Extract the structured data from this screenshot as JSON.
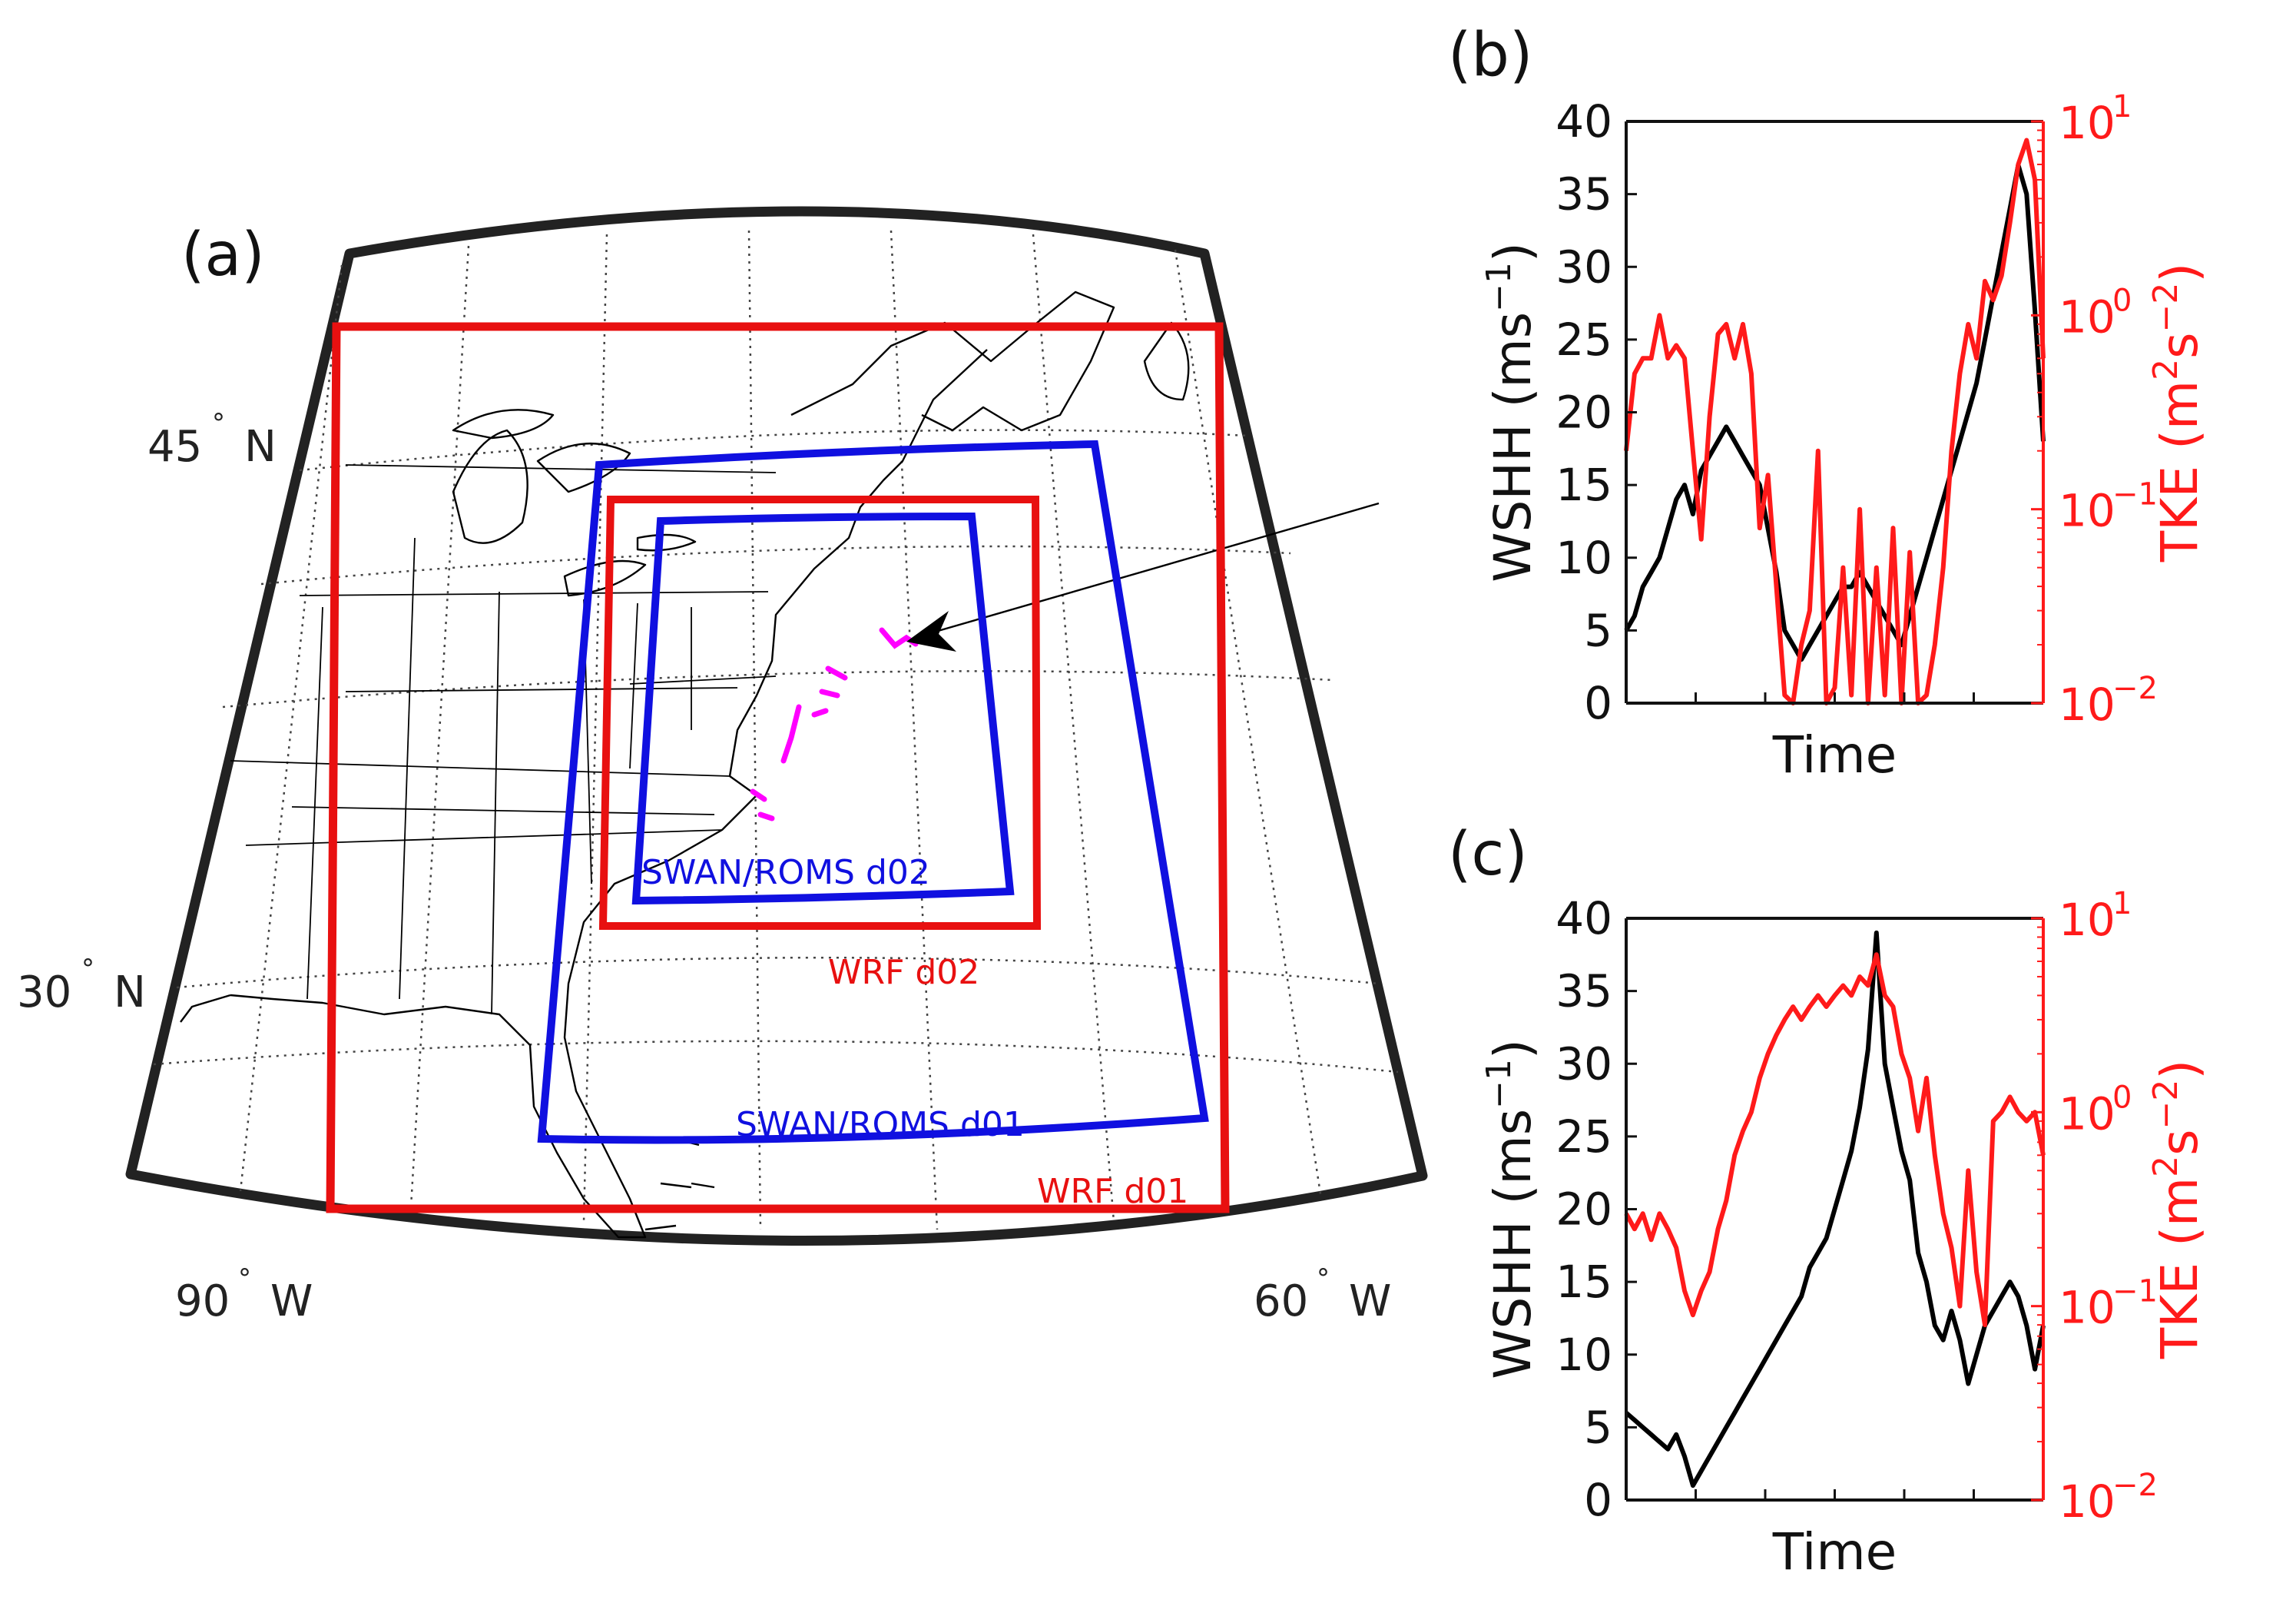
{
  "figure": {
    "panel_a": {
      "label": "(a)",
      "lat_labels": [
        {
          "text": "45",
          "suffix": "N"
        },
        {
          "text": "30",
          "suffix": "N"
        }
      ],
      "lon_labels": [
        {
          "text": "90",
          "suffix": "W"
        },
        {
          "text": "60",
          "suffix": "W"
        }
      ],
      "degree_symbol": "°",
      "domains": [
        {
          "name": "SWAN/ROMS d02",
          "color": "#1010e0"
        },
        {
          "name": "WRF d02",
          "color": "#e81010"
        },
        {
          "name": "SWAN/ROMS d01",
          "color": "#1010e0"
        },
        {
          "name": "WRF d01",
          "color": "#e81010"
        }
      ],
      "storm_track_color": "#ff00ff"
    },
    "panel_b": {
      "label": "(b)"
    },
    "panel_c": {
      "label": "(c)"
    }
  },
  "chart_data": [
    {
      "type": "line",
      "panel": "(b)",
      "xlabel": "Time",
      "ylabel_left": {
        "text": "WSHH (ms",
        "sup": "−1",
        "close": ")"
      },
      "ylabel_right": {
        "text": "TKE (m",
        "sup1": "2",
        "mid": "s",
        "sup2": "−2",
        "close": ")"
      },
      "ylim_left": [
        0,
        40
      ],
      "yticks_left": [
        "0",
        "5",
        "10",
        "15",
        "20",
        "25",
        "30",
        "35",
        "40"
      ],
      "ylim_right_log10": [
        -2,
        1
      ],
      "yticks_right": [
        {
          "base": "10",
          "exp": "−2"
        },
        {
          "base": "10",
          "exp": "−1"
        },
        {
          "base": "10",
          "exp": "0"
        },
        {
          "base": "10",
          "exp": "1"
        }
      ],
      "xlim": [
        0,
        100
      ],
      "series": [
        {
          "name": "WSHH",
          "color": "#000000",
          "axis": "left",
          "x": [
            0,
            2,
            4,
            6,
            8,
            10,
            12,
            14,
            16,
            18,
            20,
            22,
            24,
            26,
            28,
            30,
            32,
            34,
            36,
            38,
            40,
            42,
            44,
            46,
            48,
            50,
            52,
            54,
            56,
            58,
            60,
            62,
            64,
            66,
            68,
            70,
            72,
            74,
            76,
            78,
            80,
            82,
            84,
            86,
            88,
            90,
            92,
            94,
            96,
            98,
            100
          ],
          "y": [
            5,
            6,
            8,
            9,
            10,
            12,
            14,
            15,
            13,
            16,
            17,
            18,
            19,
            18,
            17,
            16,
            15,
            12,
            9,
            5,
            4,
            3,
            4,
            5,
            6,
            7,
            8,
            8,
            9,
            8,
            7,
            6,
            5,
            4,
            6,
            8,
            10,
            12,
            14,
            16,
            18,
            20,
            22,
            25,
            28,
            31,
            34,
            37,
            35,
            27,
            18
          ]
        },
        {
          "name": "TKE",
          "color": "#ff1a1a",
          "axis": "right",
          "x": [
            0,
            2,
            4,
            6,
            8,
            10,
            12,
            14,
            16,
            18,
            20,
            22,
            24,
            26,
            28,
            30,
            32,
            34,
            36,
            38,
            40,
            42,
            44,
            46,
            48,
            50,
            52,
            54,
            56,
            58,
            60,
            62,
            64,
            66,
            68,
            70,
            72,
            74,
            76,
            78,
            80,
            82,
            84,
            86,
            88,
            90,
            92,
            94,
            96,
            98,
            100
          ],
          "y": [
            0.2,
            0.5,
            0.6,
            0.6,
            1.0,
            0.6,
            0.7,
            0.6,
            0.2,
            0.07,
            0.3,
            0.8,
            0.9,
            0.6,
            0.9,
            0.5,
            0.08,
            0.15,
            0.04,
            0.011,
            0.01,
            0.02,
            0.03,
            0.2,
            0.01,
            0.012,
            0.05,
            0.011,
            0.1,
            0.01,
            0.05,
            0.011,
            0.08,
            0.01,
            0.06,
            0.01,
            0.011,
            0.02,
            0.05,
            0.2,
            0.5,
            0.9,
            0.6,
            1.5,
            1.2,
            1.6,
            3.0,
            6.0,
            8.0,
            5.0,
            0.6
          ]
        }
      ]
    },
    {
      "type": "line",
      "panel": "(c)",
      "xlabel": "Time",
      "ylabel_left": {
        "text": "WSHH (ms",
        "sup": "−1",
        "close": ")"
      },
      "ylabel_right": {
        "text": "TKE (m",
        "sup1": "2",
        "mid": "s",
        "sup2": "−2",
        "close": ")"
      },
      "ylim_left": [
        0,
        40
      ],
      "yticks_left": [
        "0",
        "5",
        "10",
        "15",
        "20",
        "25",
        "30",
        "35",
        "40"
      ],
      "ylim_right_log10": [
        -2,
        1
      ],
      "yticks_right": [
        {
          "base": "10",
          "exp": "−2"
        },
        {
          "base": "10",
          "exp": "−1"
        },
        {
          "base": "10",
          "exp": "0"
        },
        {
          "base": "10",
          "exp": "1"
        }
      ],
      "xlim": [
        0,
        100
      ],
      "series": [
        {
          "name": "WSHH",
          "color": "#000000",
          "axis": "left",
          "x": [
            0,
            2,
            4,
            6,
            8,
            10,
            12,
            14,
            16,
            18,
            20,
            22,
            24,
            26,
            28,
            30,
            32,
            34,
            36,
            38,
            40,
            42,
            44,
            46,
            48,
            50,
            52,
            54,
            56,
            58,
            60,
            62,
            64,
            66,
            68,
            70,
            72,
            74,
            76,
            78,
            80,
            82,
            84,
            86,
            88,
            90,
            92,
            94,
            96,
            98,
            100
          ],
          "y": [
            6,
            5.5,
            5,
            4.5,
            4,
            3.5,
            4.5,
            3,
            1,
            2,
            3,
            4,
            5,
            6,
            7,
            8,
            9,
            10,
            11,
            12,
            13,
            14,
            16,
            17,
            18,
            20,
            22,
            24,
            27,
            31,
            39,
            30,
            27,
            24,
            22,
            17,
            15,
            12,
            11,
            13,
            11,
            8,
            10,
            12,
            13,
            14,
            15,
            14,
            12,
            9,
            12
          ]
        },
        {
          "name": "TKE",
          "color": "#ff1a1a",
          "axis": "right",
          "x": [
            0,
            2,
            4,
            6,
            8,
            10,
            12,
            14,
            16,
            18,
            20,
            22,
            24,
            26,
            28,
            30,
            32,
            34,
            36,
            38,
            40,
            42,
            44,
            46,
            48,
            50,
            52,
            54,
            56,
            58,
            60,
            62,
            64,
            66,
            68,
            70,
            72,
            74,
            76,
            78,
            80,
            82,
            84,
            86,
            88,
            90,
            92,
            94,
            96,
            98,
            100
          ],
          "y": [
            0.3,
            0.25,
            0.3,
            0.22,
            0.3,
            0.25,
            0.2,
            0.12,
            0.09,
            0.12,
            0.15,
            0.25,
            0.35,
            0.6,
            0.8,
            1.0,
            1.5,
            2.0,
            2.5,
            3.0,
            3.5,
            3.0,
            3.5,
            4.0,
            3.5,
            4.0,
            4.5,
            4.0,
            5.0,
            4.5,
            6.5,
            4.0,
            3.5,
            2.0,
            1.5,
            0.8,
            1.5,
            0.6,
            0.3,
            0.2,
            0.1,
            0.5,
            0.15,
            0.08,
            0.9,
            1.0,
            1.2,
            1.0,
            0.9,
            1.0,
            0.6
          ]
        }
      ]
    }
  ]
}
